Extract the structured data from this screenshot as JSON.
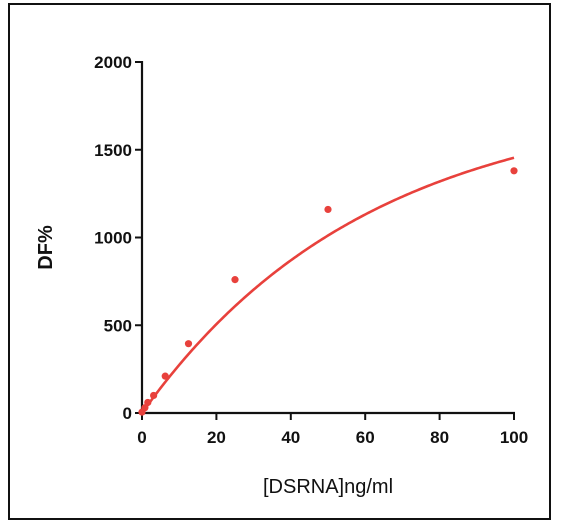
{
  "chart_data": {
    "type": "scatter",
    "title": "",
    "xlabel": "[DSRNA]ng/ml",
    "ylabel": "DF%",
    "xlim": [
      0,
      100
    ],
    "ylim": [
      0,
      2000
    ],
    "x_ticks": [
      0,
      20,
      40,
      60,
      80,
      100
    ],
    "y_ticks": [
      0,
      500,
      1000,
      1500,
      2000
    ],
    "x_tick_labels": [
      "0",
      "20",
      "40",
      "60",
      "80",
      "100"
    ],
    "y_tick_labels": [
      "0",
      "500",
      "1000",
      "1500",
      "2000"
    ],
    "grid": false,
    "legend": "none",
    "series": [
      {
        "kind": "points",
        "color": "#e8413c",
        "x": [
          0,
          0.78,
          1.56,
          3.125,
          6.25,
          12.5,
          25,
          50,
          100
        ],
        "y": [
          5,
          30,
          60,
          100,
          210,
          395,
          760,
          1160,
          1380
        ]
      },
      {
        "kind": "fit-curve",
        "color": "#e8413c",
        "model": "exponential-rise",
        "ymax": 1800,
        "k": 0.0165
      }
    ]
  }
}
